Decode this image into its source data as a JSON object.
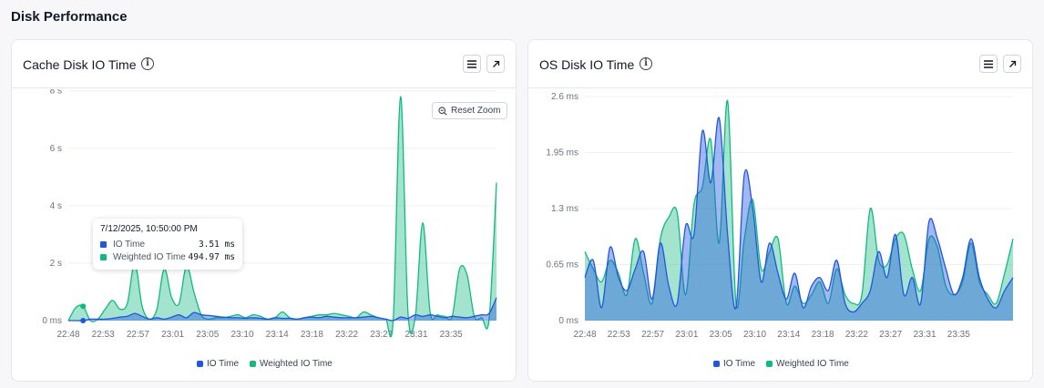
{
  "page": {
    "title": "Disk Performance"
  },
  "colors": {
    "io_time": "#2255e0",
    "weighted_io_time": "#10b981",
    "grid": "#f0f0f0",
    "axis_text": "#6b7280"
  },
  "cards": [
    {
      "title": "Cache Disk IO Time",
      "info_icon": "info-icon",
      "menu_icon": "hamburger-menu-icon",
      "expand_icon": "expand-arrow-icon",
      "reset_zoom_label": "Reset Zoom",
      "tooltip": {
        "title": "7/12/2025, 10:50:00 PM",
        "rows": [
          {
            "name": "IO Time",
            "value": "3.51 ms"
          },
          {
            "name": "Weighted IO Time",
            "value": "494.97 ms"
          }
        ]
      },
      "legend": [
        "IO Time",
        "Weighted IO Time"
      ]
    },
    {
      "title": "OS Disk IO Time",
      "info_icon": "info-icon",
      "menu_icon": "hamburger-menu-icon",
      "expand_icon": "expand-arrow-icon",
      "legend": [
        "IO Time",
        "Weighted IO Time"
      ]
    }
  ],
  "chart_data": [
    {
      "type": "area",
      "title": "Cache Disk IO Time",
      "y_unit": "s",
      "ylim": [
        0,
        7.8
      ],
      "y_ticks": [
        {
          "value": 0,
          "label": "0 ms"
        },
        {
          "value": 2,
          "label": "2 s"
        },
        {
          "value": 4,
          "label": "4 s"
        },
        {
          "value": 6,
          "label": "6 s"
        },
        {
          "value": 8,
          "label": "8 s"
        }
      ],
      "x_tick_labels": [
        "22:48",
        "22:53",
        "22:57",
        "23:01",
        "23:05",
        "23:10",
        "23:14",
        "23:18",
        "23:22",
        "23:27",
        "23:31",
        "23:35"
      ],
      "grid": true,
      "legend_position": "bottom",
      "series": [
        {
          "name": "IO Time",
          "values": [
            0.0,
            0.0,
            0.0,
            0.05,
            0.05,
            0.05,
            0.08,
            0.12,
            0.15,
            0.25,
            0.15,
            0.05,
            0.1,
            0.05,
            0.12,
            0.2,
            0.1,
            0.28,
            0.2,
            0.18,
            0.15,
            0.12,
            0.1,
            0.1,
            0.08,
            0.1,
            0.08,
            0.05,
            0.1,
            0.08,
            0.08,
            0.05,
            0.1,
            0.12,
            0.1,
            0.15,
            0.12,
            0.1,
            0.1,
            0.1,
            0.12,
            0.15,
            0.1,
            0.05,
            0.0,
            0.12,
            0.08,
            0.2,
            0.15,
            0.2,
            0.15,
            0.1,
            0.15,
            0.12,
            0.1,
            0.15,
            0.2,
            0.25,
            0.8
          ]
        },
        {
          "name": "Weighted IO Time",
          "values": [
            0.0,
            0.45,
            0.5,
            0.0,
            0.05,
            0.4,
            0.7,
            0.4,
            0.6,
            2.0,
            0.5,
            0.05,
            0.4,
            1.8,
            0.8,
            0.6,
            1.9,
            1.0,
            0.2,
            0.05,
            0.1,
            0.1,
            0.15,
            0.2,
            0.1,
            0.2,
            0.15,
            0.05,
            0.1,
            0.3,
            0.1,
            0.05,
            0.1,
            0.15,
            0.2,
            0.2,
            0.25,
            0.2,
            0.15,
            0.1,
            0.3,
            0.2,
            0.1,
            0.05,
            0.0,
            7.8,
            0.3,
            0.15,
            3.4,
            0.3,
            0.2,
            0.15,
            0.15,
            1.8,
            1.6,
            0.15,
            0.1,
            0.05,
            4.8
          ]
        }
      ],
      "hover": {
        "x_label": "7/12/2025, 10:50:00 PM",
        "io_time_ms": 3.51,
        "weighted_io_time_ms": 494.97
      }
    },
    {
      "type": "area",
      "title": "OS Disk IO Time",
      "y_unit": "ms",
      "ylim": [
        0,
        2.6
      ],
      "y_ticks": [
        {
          "value": 0,
          "label": "0 ms"
        },
        {
          "value": 0.65,
          "label": "0.65 ms"
        },
        {
          "value": 1.3,
          "label": "1.3 ms"
        },
        {
          "value": 1.95,
          "label": "1.95 ms"
        },
        {
          "value": 2.6,
          "label": "2.6 ms"
        }
      ],
      "x_tick_labels": [
        "22:48",
        "22:53",
        "22:57",
        "23:01",
        "23:05",
        "23:10",
        "23:14",
        "23:18",
        "23:22",
        "23:27",
        "23:31",
        "23:35"
      ],
      "grid": true,
      "legend_position": "bottom",
      "series": [
        {
          "name": "IO Time",
          "values": [
            0.5,
            0.7,
            0.15,
            0.85,
            0.5,
            0.35,
            0.6,
            0.8,
            0.25,
            0.9,
            0.4,
            0.2,
            1.1,
            1.0,
            2.2,
            1.6,
            2.35,
            1.0,
            0.15,
            1.7,
            1.3,
            0.45,
            0.9,
            0.55,
            0.25,
            0.55,
            0.15,
            0.4,
            0.5,
            0.35,
            0.7,
            0.2,
            0.1,
            0.2,
            0.35,
            0.8,
            0.5,
            1.0,
            0.3,
            0.5,
            0.2,
            1.15,
            0.95,
            0.6,
            0.3,
            0.5,
            0.95,
            0.5,
            0.25,
            0.15,
            0.35,
            0.5
          ]
        },
        {
          "name": "Weighted IO Time",
          "values": [
            0.8,
            0.6,
            0.45,
            0.7,
            0.55,
            0.3,
            0.95,
            0.55,
            0.2,
            0.95,
            1.2,
            1.25,
            0.3,
            1.35,
            1.55,
            2.1,
            0.9,
            2.55,
            0.2,
            0.95,
            1.4,
            0.6,
            0.8,
            0.95,
            0.2,
            0.4,
            0.2,
            0.3,
            0.45,
            0.2,
            0.6,
            0.3,
            0.2,
            0.3,
            1.3,
            0.7,
            0.65,
            0.95,
            1.0,
            0.6,
            0.35,
            0.95,
            0.85,
            0.4,
            0.3,
            0.45,
            0.9,
            0.45,
            0.3,
            0.2,
            0.55,
            0.95
          ]
        }
      ]
    }
  ]
}
